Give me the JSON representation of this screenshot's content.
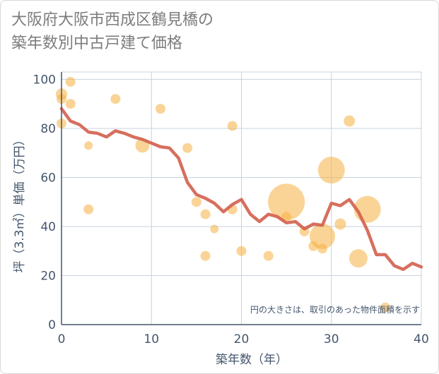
{
  "title_line1": "大阪府大阪市西成区鶴見橋の",
  "title_line2": "築年数別中古戸建て価格",
  "chart_data": {
    "type": "scatter+line",
    "title": "大阪府大阪市西成区鶴見橋の築年数別中古戸建て価格",
    "xlabel": "築年数（年）",
    "ylabel": "坪（3.3㎡）単価（万円）",
    "xlim": [
      0,
      40
    ],
    "ylim": [
      0,
      103
    ],
    "x_ticks": [
      "0",
      "10",
      "20",
      "30",
      "40"
    ],
    "y_ticks": [
      "0",
      "20",
      "40",
      "60",
      "80",
      "100"
    ],
    "grid": true,
    "note": "円の大きさは、取引のあった物件面積を示す",
    "colors": {
      "bubble": "#f5b041",
      "line": "#d35f4d",
      "axis": "#44566c",
      "grid": "#c8d2dc"
    },
    "bubbles": [
      {
        "x": 0,
        "y": 94,
        "r": 8
      },
      {
        "x": 0,
        "y": 92,
        "r": 7
      },
      {
        "x": 0,
        "y": 82,
        "r": 7
      },
      {
        "x": 1,
        "y": 99,
        "r": 7
      },
      {
        "x": 1,
        "y": 90,
        "r": 7
      },
      {
        "x": 3,
        "y": 73,
        "r": 6
      },
      {
        "x": 3,
        "y": 47,
        "r": 7
      },
      {
        "x": 6,
        "y": 92,
        "r": 7
      },
      {
        "x": 9,
        "y": 73,
        "r": 10
      },
      {
        "x": 11,
        "y": 88,
        "r": 7
      },
      {
        "x": 14,
        "y": 72,
        "r": 7
      },
      {
        "x": 15,
        "y": 50,
        "r": 7
      },
      {
        "x": 16,
        "y": 45,
        "r": 7
      },
      {
        "x": 16,
        "y": 28,
        "r": 7
      },
      {
        "x": 17,
        "y": 39,
        "r": 6
      },
      {
        "x": 19,
        "y": 81,
        "r": 7
      },
      {
        "x": 19,
        "y": 47,
        "r": 7
      },
      {
        "x": 20,
        "y": 30,
        "r": 7
      },
      {
        "x": 23,
        "y": 28,
        "r": 7
      },
      {
        "x": 25,
        "y": 50,
        "r": 26
      },
      {
        "x": 25,
        "y": 44,
        "r": 7
      },
      {
        "x": 27,
        "y": 38,
        "r": 7
      },
      {
        "x": 28,
        "y": 32,
        "r": 7
      },
      {
        "x": 29,
        "y": 36,
        "r": 18
      },
      {
        "x": 29,
        "y": 31,
        "r": 7
      },
      {
        "x": 30,
        "y": 63,
        "r": 19
      },
      {
        "x": 31,
        "y": 41,
        "r": 8
      },
      {
        "x": 32,
        "y": 83,
        "r": 8
      },
      {
        "x": 33,
        "y": 27,
        "r": 13
      },
      {
        "x": 34,
        "y": 47,
        "r": 19
      },
      {
        "x": 36,
        "y": 7,
        "r": 7
      }
    ],
    "trend": {
      "x": [
        0,
        1,
        2,
        3,
        4,
        5,
        6,
        7,
        8,
        9,
        10,
        11,
        12,
        13,
        14,
        15,
        16,
        17,
        18,
        19,
        20,
        21,
        22,
        23,
        24,
        25,
        26,
        27,
        28,
        29,
        30,
        31,
        32,
        33,
        34,
        35,
        36,
        37,
        38,
        39,
        40
      ],
      "y": [
        88,
        83,
        81.5,
        78.5,
        78,
        76.5,
        79,
        78,
        76.5,
        75.5,
        74,
        72.5,
        72,
        68,
        58,
        53,
        51.5,
        49.5,
        46,
        49,
        51,
        45,
        42,
        45,
        44,
        41.5,
        42,
        39,
        41,
        40.5,
        49.5,
        48.5,
        51,
        46,
        38.5,
        28.5,
        28.5,
        24,
        22.5,
        25,
        23.5
      ]
    }
  }
}
